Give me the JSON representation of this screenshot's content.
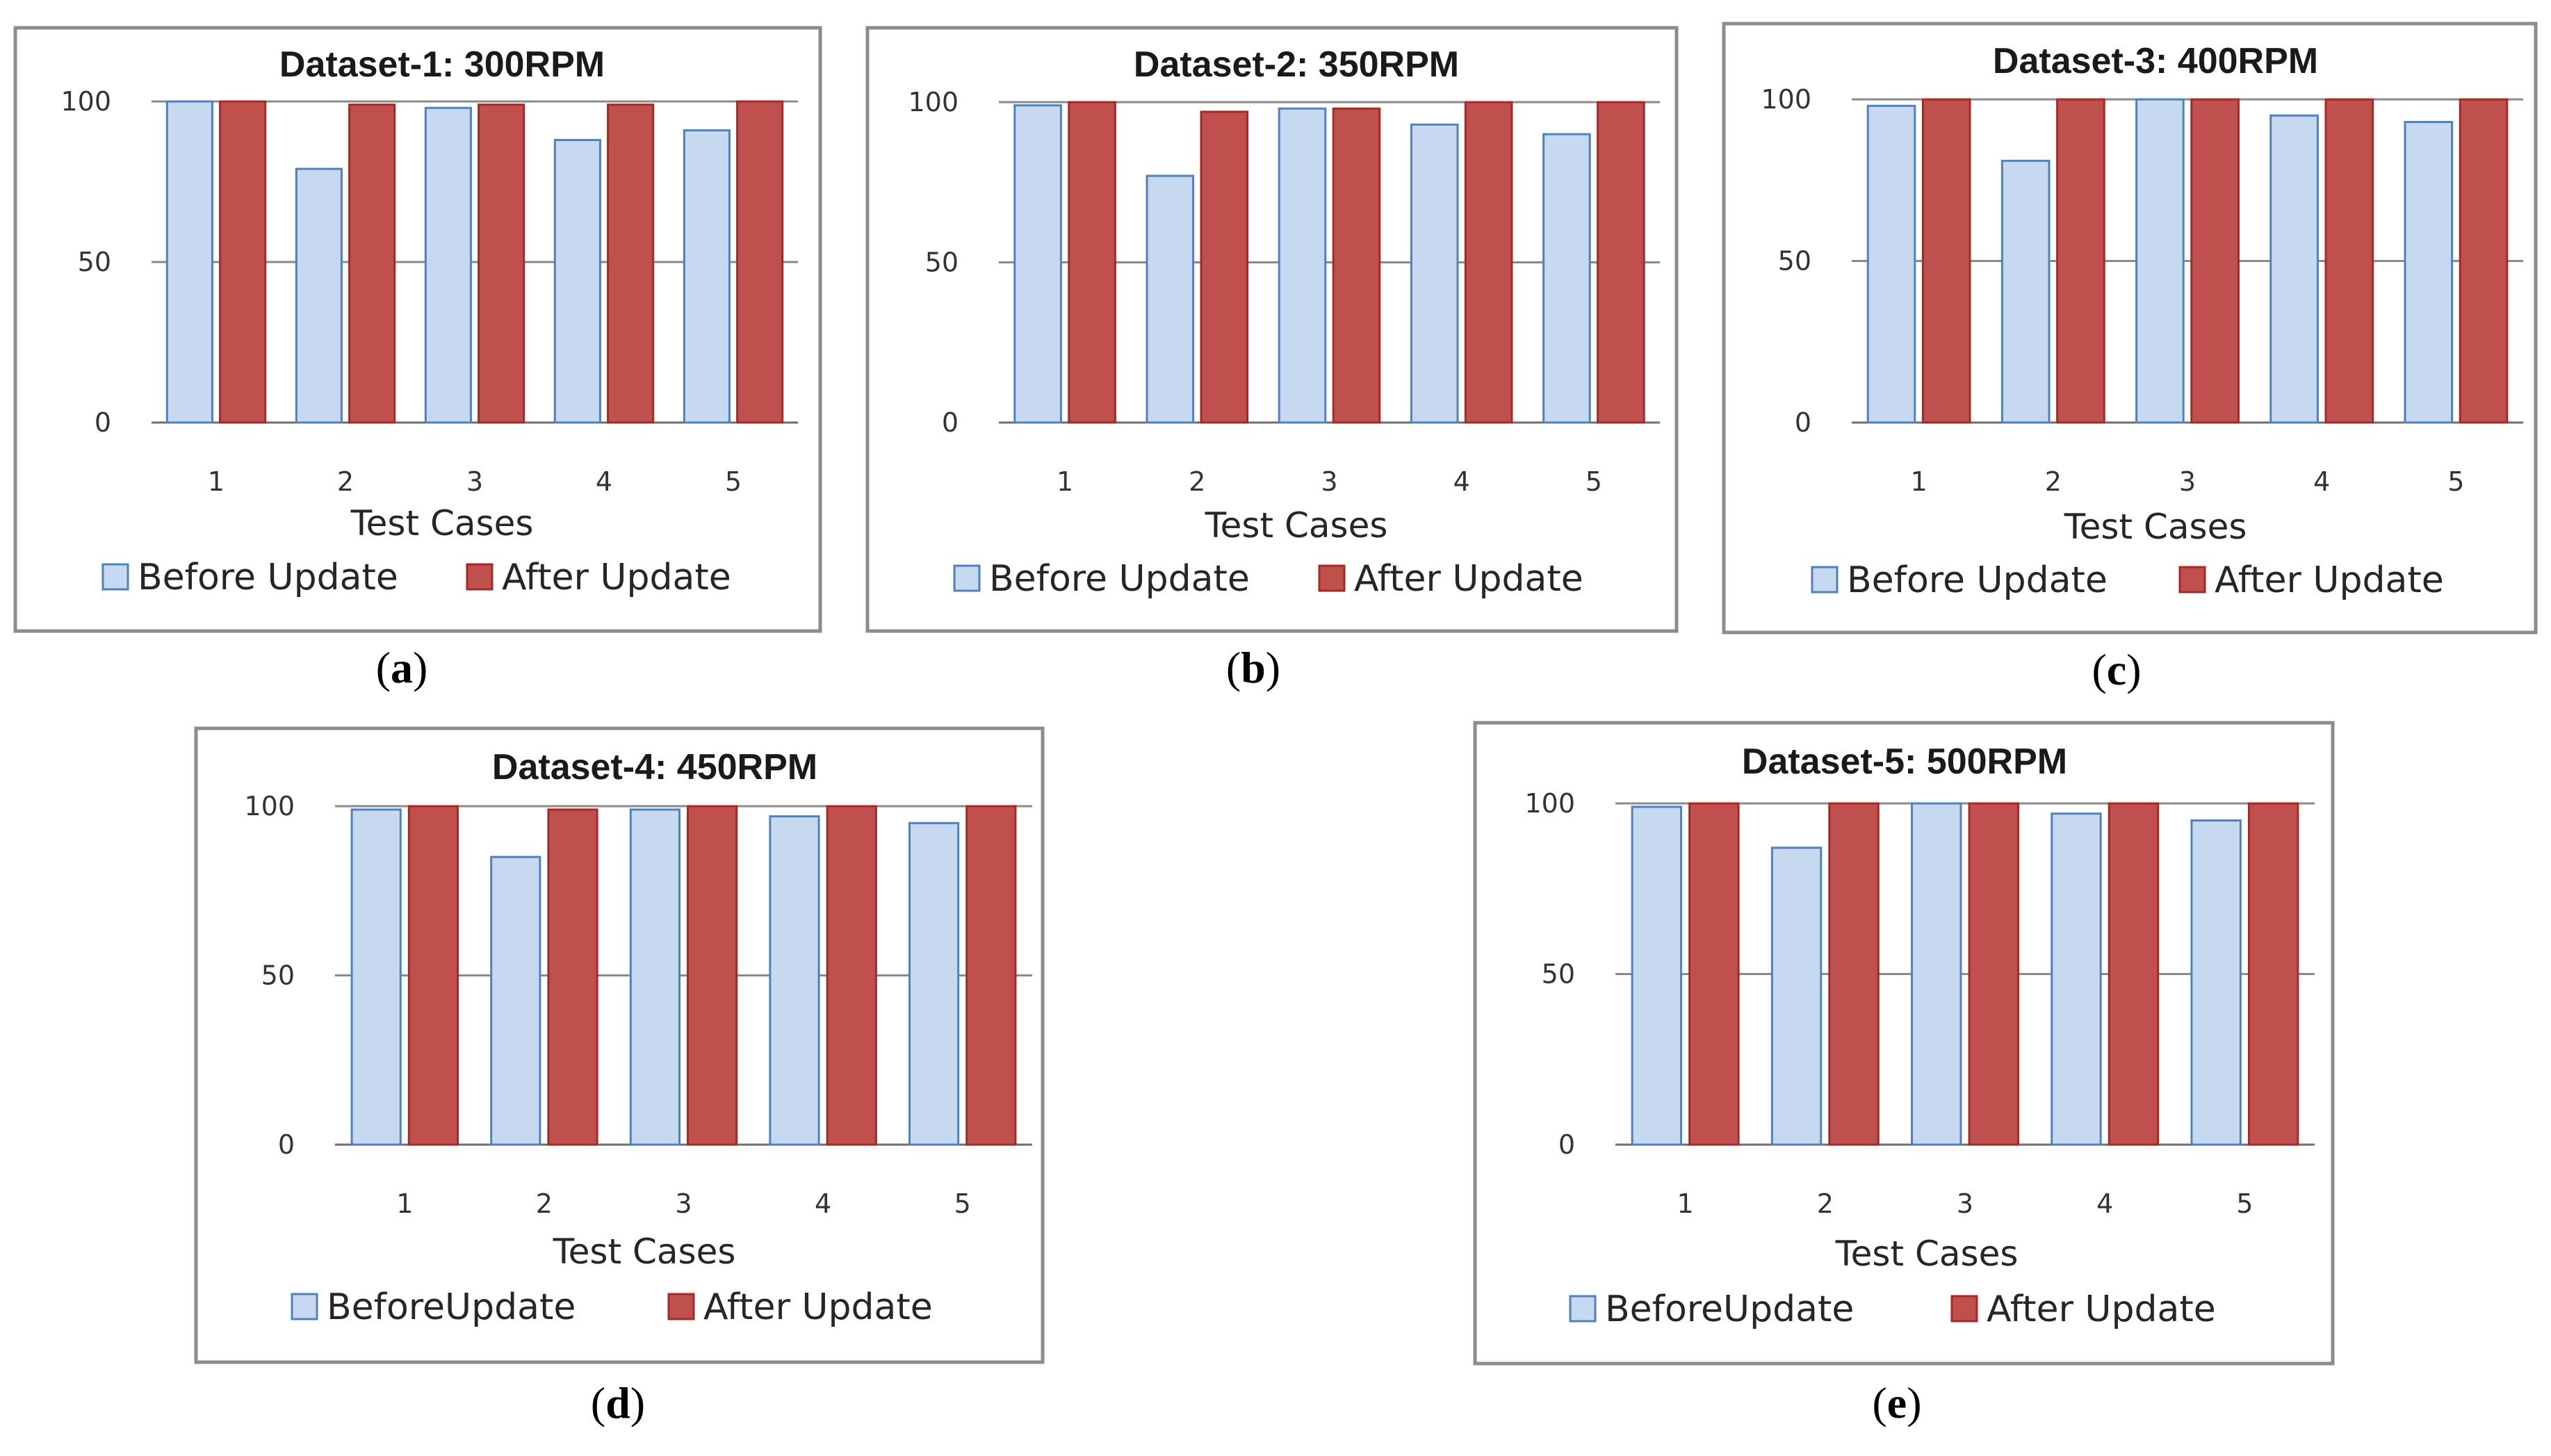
{
  "colors": {
    "before_fill": "#c6d9f1",
    "before_edge": "#4f81bd",
    "after_fill": "#c0504d",
    "after_edge": "#a52a27"
  },
  "chart_data": [
    {
      "type": "bar",
      "panel": "a",
      "title": "Dataset-1: 300RPM",
      "xlabel": "Test Cases",
      "ylabel": "",
      "categories": [
        "1",
        "2",
        "3",
        "4",
        "5"
      ],
      "yticks": [
        "0",
        "50",
        "100"
      ],
      "ylim": [
        0,
        100
      ],
      "legend_position": "bottom",
      "series": [
        {
          "name": "Before Update",
          "values": [
            100,
            79,
            98,
            88,
            91
          ]
        },
        {
          "name": "After Update",
          "values": [
            100,
            99,
            99,
            99,
            100
          ]
        }
      ]
    },
    {
      "type": "bar",
      "panel": "b",
      "title": "Dataset-2: 350RPM",
      "xlabel": "Test Cases",
      "ylabel": "",
      "categories": [
        "1",
        "2",
        "3",
        "4",
        "5"
      ],
      "yticks": [
        "0",
        "50",
        "100"
      ],
      "ylim": [
        0,
        100
      ],
      "legend_position": "bottom",
      "series": [
        {
          "name": "Before Update",
          "values": [
            99,
            77,
            98,
            93,
            90
          ]
        },
        {
          "name": "After Update",
          "values": [
            100,
            97,
            98,
            100,
            100
          ]
        }
      ]
    },
    {
      "type": "bar",
      "panel": "c",
      "title": "Dataset-3: 400RPM",
      "xlabel": "Test Cases",
      "ylabel": "",
      "categories": [
        "1",
        "2",
        "3",
        "4",
        "5"
      ],
      "yticks": [
        "0",
        "50",
        "100"
      ],
      "ylim": [
        0,
        100
      ],
      "legend_position": "bottom",
      "series": [
        {
          "name": "Before Update",
          "values": [
            98,
            81,
            100,
            95,
            93
          ]
        },
        {
          "name": "After Update",
          "values": [
            100,
            100,
            100,
            100,
            100
          ]
        }
      ]
    },
    {
      "type": "bar",
      "panel": "d",
      "title": "Dataset-4: 450RPM",
      "xlabel": "Test Cases",
      "ylabel": "",
      "categories": [
        "1",
        "2",
        "3",
        "4",
        "5"
      ],
      "yticks": [
        "0",
        "50",
        "100"
      ],
      "ylim": [
        0,
        100
      ],
      "legend_position": "bottom",
      "series": [
        {
          "name": "BeforeUpdate",
          "values": [
            99,
            85,
            99,
            97,
            95
          ]
        },
        {
          "name": "After Update",
          "values": [
            100,
            99,
            100,
            100,
            100
          ]
        }
      ]
    },
    {
      "type": "bar",
      "panel": "e",
      "title": "Dataset-5: 500RPM",
      "xlabel": "Test Cases",
      "ylabel": "",
      "categories": [
        "1",
        "2",
        "3",
        "4",
        "5"
      ],
      "yticks": [
        "0",
        "50",
        "100"
      ],
      "ylim": [
        0,
        100
      ],
      "legend_position": "bottom",
      "series": [
        {
          "name": "BeforeUpdate",
          "values": [
            99,
            87,
            100,
            97,
            95
          ]
        },
        {
          "name": "After Update",
          "values": [
            100,
            100,
            100,
            100,
            100
          ]
        }
      ]
    }
  ]
}
